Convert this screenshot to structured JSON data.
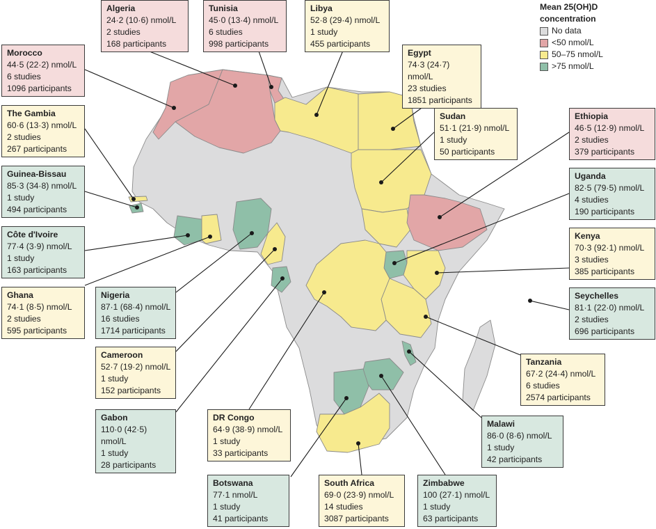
{
  "legend": {
    "title": "Mean 25(OH)D concentration",
    "items": [
      {
        "label": "No data",
        "color": "#dcdcdd"
      },
      {
        "label": "<50 nmol/L",
        "color": "#e2a6a7"
      },
      {
        "label": "50–75 nmol/L",
        "color": "#f7ea8e"
      },
      {
        "label": ">75 nmol/L",
        "color": "#8fbfa8"
      }
    ]
  },
  "colors": {
    "no_data": "#dcdcdd",
    "low": "#e2a6a7",
    "mid": "#f7ea8e",
    "high": "#8fbfa8",
    "low_box": "#f5dcdc",
    "mid_box": "#fdf6d9",
    "high_box": "#d8e8e0"
  },
  "countries": [
    {
      "name": "Algeria",
      "value": "24·2 (10·6) nmol/L",
      "studies": "2 studies",
      "participants": "168 participants",
      "category": "low"
    },
    {
      "name": "Tunisia",
      "value": "45·0 (13·4) nmol/L",
      "studies": "6 studies",
      "participants": "998 participants",
      "category": "low"
    },
    {
      "name": "Libya",
      "value": "52·8 (29·4) nmol/L",
      "studies": "1 study",
      "participants": "455 participants",
      "category": "mid"
    },
    {
      "name": "Morocco",
      "value": "44·5 (22·2) nmol/L",
      "studies": "6 studies",
      "participants": "1096 participants",
      "category": "low"
    },
    {
      "name": "Egypt",
      "value": "74·3 (24·7) nmol/L",
      "studies": "23 studies",
      "participants": "1851 participants",
      "category": "mid"
    },
    {
      "name": "The Gambia",
      "value": "60·6 (13·3) nmol/L",
      "studies": "2 studies",
      "participants": "267 participants",
      "category": "mid"
    },
    {
      "name": "Sudan",
      "value": "51·1 (21·9) nmol/L",
      "studies": "1 study",
      "participants": "50 participants",
      "category": "mid"
    },
    {
      "name": "Ethiopia",
      "value": "46·5 (12·9) nmol/L",
      "studies": "2 studies",
      "participants": "379 participants",
      "category": "low"
    },
    {
      "name": "Guinea-Bissau",
      "value": "85·3 (34·8) nmol/L",
      "studies": "1 study",
      "participants": "494 participants",
      "category": "high"
    },
    {
      "name": "Uganda",
      "value": "82·5 (79·5) nmol/L",
      "studies": "4 studies",
      "participants": "190 participants",
      "category": "high"
    },
    {
      "name": "Côte d'Ivoire",
      "value": "77·4 (3·9) nmol/L",
      "studies": "1 study",
      "participants": "163 participants",
      "category": "high"
    },
    {
      "name": "Kenya",
      "value": "70·3 (92·1) nmol/L",
      "studies": "3 studies",
      "participants": "385 participants",
      "category": "mid"
    },
    {
      "name": "Ghana",
      "value": "74·1 (8·5) nmol/L",
      "studies": "2 studies",
      "participants": "595 participants",
      "category": "mid"
    },
    {
      "name": "Nigeria",
      "value": "87·1 (68·4) nmol/L",
      "studies": "16 studies",
      "participants": "1714 participants",
      "category": "high"
    },
    {
      "name": "Seychelles",
      "value": "81·1 (22·0) nmol/L",
      "studies": "2 studies",
      "participants": "696 participants",
      "category": "high"
    },
    {
      "name": "Cameroon",
      "value": "52·7 (19·2) nmol/L",
      "studies": "1 study",
      "participants": "152 participants",
      "category": "mid"
    },
    {
      "name": "Tanzania",
      "value": "67·2 (24·4) nmol/L",
      "studies": "6 studies",
      "participants": "2574 participants",
      "category": "mid"
    },
    {
      "name": "Gabon",
      "value": "110·0 (42·5) nmol/L",
      "studies": "1 study",
      "participants": "28 participants",
      "category": "high"
    },
    {
      "name": "DR Congo",
      "value": "64·9 (38·9) nmol/L",
      "studies": "1 study",
      "participants": "33 participants",
      "category": "mid"
    },
    {
      "name": "Malawi",
      "value": "86·0 (8·6) nmol/L",
      "studies": "1 study",
      "participants": "42 participants",
      "category": "high"
    },
    {
      "name": "Botswana",
      "value": "77·1 nmol/L",
      "studies": "1 study",
      "participants": "41 participants",
      "category": "high"
    },
    {
      "name": "South Africa",
      "value": "69·0 (23·9) nmol/L",
      "studies": "14 studies",
      "participants": "3087 participants",
      "category": "mid"
    },
    {
      "name": "Zimbabwe",
      "value": "100 (27·1) nmol/L",
      "studies": "1 study",
      "participants": "63 participants",
      "category": "high"
    }
  ]
}
